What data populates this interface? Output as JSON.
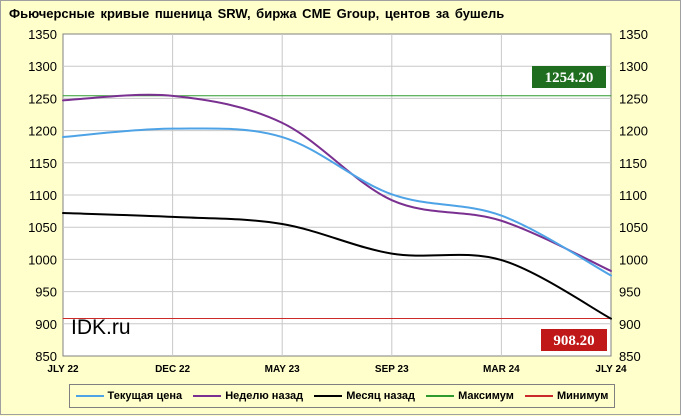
{
  "chart_data": {
    "type": "line",
    "title": "Фьючерсные кривые пшеница SRW, биржа CME Group, центов за бушель",
    "categories": [
      "JLY 22",
      "DEC 22",
      "MAY 23",
      "SEP 23",
      "MAR 24",
      "JLY 24"
    ],
    "y_ticks": [
      "1350",
      "1300",
      "1250",
      "1200",
      "1150",
      "1100",
      "1050",
      "1000",
      "950",
      "900",
      "850"
    ],
    "ylim": [
      850,
      1350
    ],
    "grid": true,
    "watermark": "IDK.ru",
    "legend_position": "bottom",
    "series": [
      {
        "name": "Текущая цена",
        "color": "#4da3e6",
        "values": [
          1190,
          1203,
          1190,
          1101,
          1068,
          975
        ]
      },
      {
        "name": "Неделю назад",
        "color": "#7a3090",
        "values": [
          1247,
          1254,
          1212,
          1092,
          1060,
          982
        ]
      },
      {
        "name": "Месяц  назад",
        "color": "#000000",
        "values": [
          1072,
          1066,
          1055,
          1009,
          999,
          908
        ]
      },
      {
        "name": "Максимум",
        "color": "#2e9a2e",
        "values": [
          1254.2,
          1254.2,
          1254.2,
          1254.2,
          1254.2,
          1254.2
        ]
      },
      {
        "name": "Минимум",
        "color": "#cc2a2a",
        "values": [
          908.2,
          908.2,
          908.2,
          908.2,
          908.2,
          908.2
        ]
      }
    ],
    "max_label": {
      "text": "1254.20",
      "value": 1254.2,
      "bg": "#1f6e1f"
    },
    "min_label": {
      "text": "908.20",
      "value": 908.2,
      "bg": "#c01818"
    }
  }
}
